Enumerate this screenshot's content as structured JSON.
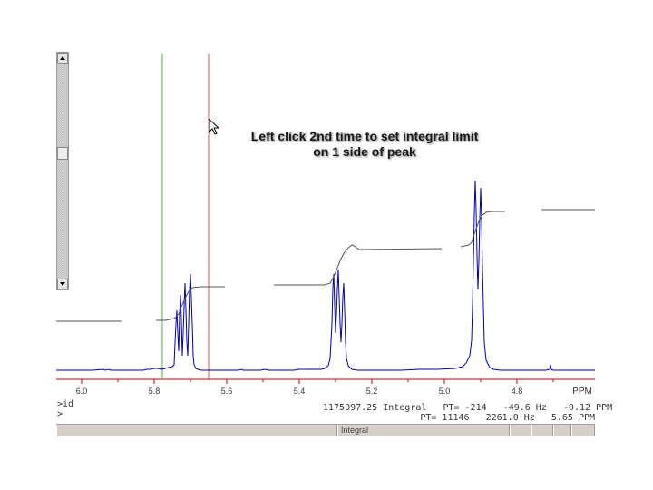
{
  "instruction": {
    "line1": "Left click 2nd time to set integral limit",
    "line2": "on 1 side of peak"
  },
  "axis": {
    "unit_label": "PPM",
    "ticks": [
      "6.0",
      "5.8",
      "5.6",
      "5.4",
      "5.2",
      "5.0",
      "4.8"
    ]
  },
  "command_line": {
    "line1": ">id",
    "line2": ">"
  },
  "readout": {
    "line1": "1175097.25 Integral   PT= -214   -49.6 Hz   -0.12 PPM",
    "line2": "PT= 11146   2261.0 Hz   5.65 PPM"
  },
  "status_bar": {
    "mode": "Integral"
  },
  "colors": {
    "spectrum": "#0000b0",
    "integral": "#555555",
    "baseline_marker": "#cc0000",
    "cursor_red": "#e05050",
    "cursor_green": "#40c040"
  },
  "icons": {
    "scroll_up": "triangle-up-icon",
    "scroll_down": "triangle-down-icon",
    "mouse_cursor": "arrow-cursor-icon"
  }
}
